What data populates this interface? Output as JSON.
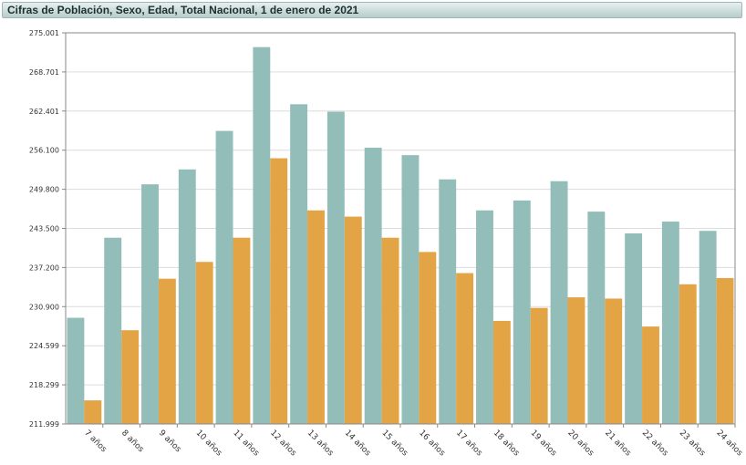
{
  "title": "Cifras de Población, Sexo, Edad, Total Nacional, 1 de enero de 2021",
  "chart_data": {
    "type": "bar",
    "title": "Cifras de Población, Sexo, Edad, Total Nacional, 1 de enero de 2021",
    "xlabel": "",
    "ylabel": "",
    "ylim": [
      211999,
      275001
    ],
    "yticks": [
      "211.999",
      "218.299",
      "224.599",
      "230.900",
      "237.200",
      "243.500",
      "249.800",
      "256.100",
      "262.401",
      "268.701",
      "275.001"
    ],
    "grid": true,
    "categories": [
      "7 años",
      "8 años",
      "9 años",
      "10 años",
      "11 años",
      "12 años",
      "13 años",
      "14 años",
      "15 años",
      "16 años",
      "17 años",
      "18 años",
      "19 años",
      "20 años",
      "21 años",
      "22 años",
      "23 años",
      "24 años"
    ],
    "series": [
      {
        "color": "#93bdb8",
        "values": [
          229100,
          242000,
          250600,
          253000,
          259200,
          272700,
          263500,
          262300,
          256500,
          255300,
          251400,
          246400,
          248000,
          251100,
          246200,
          242700,
          244600,
          243100
        ]
      },
      {
        "color": "#e3a446",
        "values": [
          215800,
          227100,
          235400,
          238100,
          242000,
          254800,
          246400,
          245400,
          242000,
          239700,
          236300,
          228600,
          230700,
          232400,
          232200,
          227700,
          234500,
          235500
        ]
      }
    ]
  }
}
